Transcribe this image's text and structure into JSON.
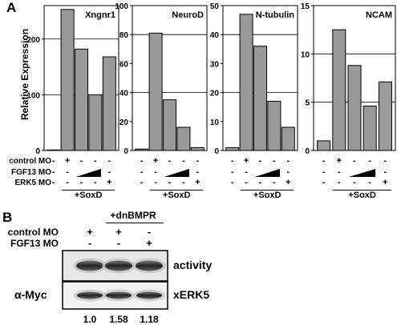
{
  "panel_a_letter": "A",
  "panel_b_letter": "B",
  "y_axis_label": "Relative Expression",
  "conditions_panel_a": {
    "rows": [
      {
        "label": "control MO",
        "marks": [
          "-",
          "+",
          "-",
          "-",
          "-"
        ]
      },
      {
        "label": "FGF13 MO",
        "marks": [
          "-",
          "-",
          "ramp",
          "ramp",
          "-"
        ]
      },
      {
        "label": "ERK5 MO",
        "marks": [
          "-",
          "-",
          "-",
          "-",
          "+"
        ]
      }
    ],
    "group_label": "+SoxD"
  },
  "chart_data": [
    {
      "type": "bar",
      "title": "Xngnr1",
      "ylim": [
        0,
        260
      ],
      "yticks": [
        0,
        100,
        200
      ],
      "gridlines": [
        100,
        200
      ],
      "values": [
        1,
        253,
        182,
        100,
        168
      ]
    },
    {
      "type": "bar",
      "title": "NeuroD",
      "ylim": [
        0,
        100
      ],
      "yticks": [
        0,
        20,
        40,
        60,
        80,
        100
      ],
      "gridlines": [
        40,
        80
      ],
      "values": [
        1,
        81,
        35,
        16,
        2
      ]
    },
    {
      "type": "bar",
      "title": "N-tubulin",
      "ylim": [
        0,
        50
      ],
      "yticks": [
        0,
        10,
        20,
        30,
        40,
        50
      ],
      "gridlines": [
        20,
        40
      ],
      "values": [
        1,
        47,
        36,
        17,
        8
      ]
    },
    {
      "type": "bar",
      "title": "NCAM",
      "ylim": [
        0,
        15
      ],
      "yticks": [
        0,
        5,
        10,
        15
      ],
      "gridlines": [
        5,
        10
      ],
      "values": [
        1,
        12.5,
        8.8,
        4.6,
        7.1
      ]
    }
  ],
  "panel_b": {
    "header_label": "+dnBMPR",
    "rows": [
      {
        "label": "control MO",
        "marks": [
          "+",
          "+",
          "-"
        ]
      },
      {
        "label": "FGF13 MO",
        "marks": [
          "-",
          "-",
          "+"
        ]
      }
    ],
    "blots": [
      {
        "right_label": "activity",
        "left_label": ""
      },
      {
        "right_label": "xERK5",
        "left_label": "α-Myc"
      }
    ],
    "quantification": [
      "1.0",
      "1.58",
      "1.18"
    ]
  }
}
